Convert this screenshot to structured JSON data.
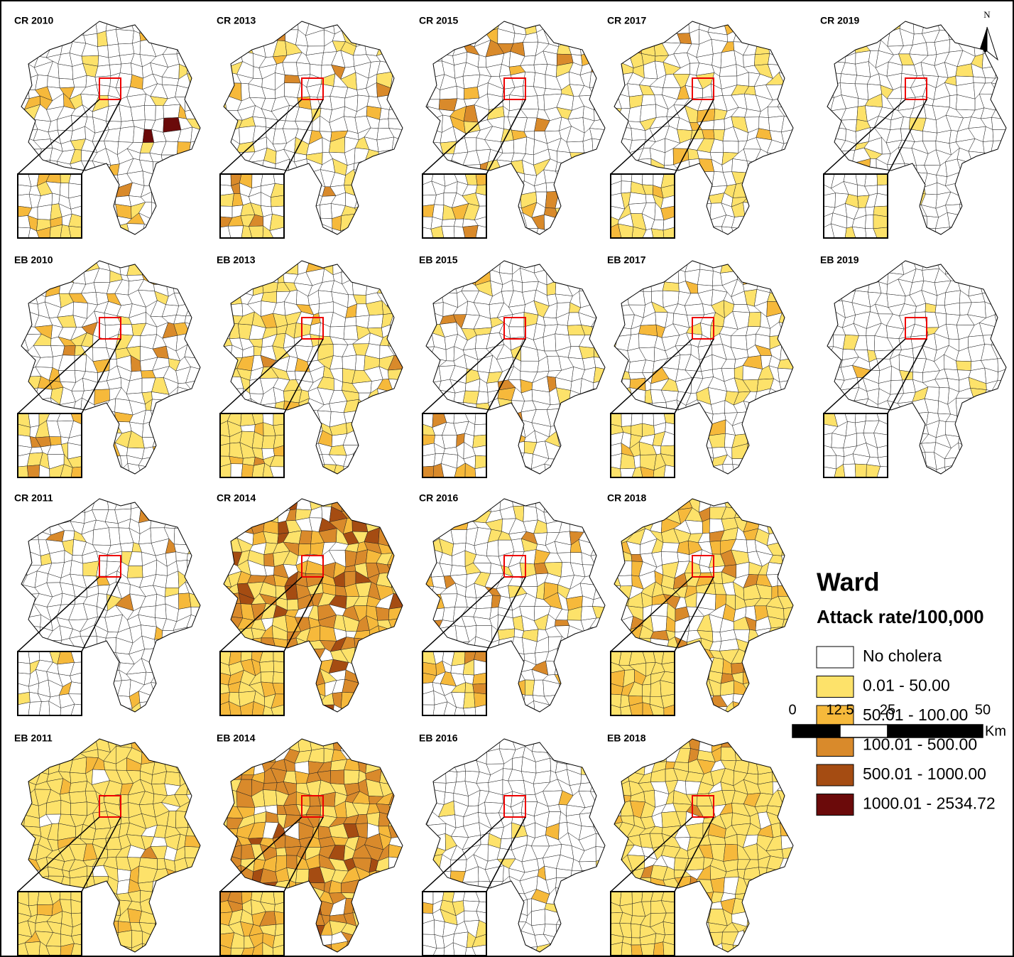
{
  "panels": [
    {
      "label": "CR 2010"
    },
    {
      "label": "CR 2013"
    },
    {
      "label": "CR 2015"
    },
    {
      "label": "CR 2017"
    },
    {
      "label": "CR 2019"
    },
    {
      "label": "EB 2010"
    },
    {
      "label": "EB 2013"
    },
    {
      "label": "EB 2015"
    },
    {
      "label": "EB 2017"
    },
    {
      "label": "EB 2019"
    },
    {
      "label": "CR 2011"
    },
    {
      "label": "CR 2014"
    },
    {
      "label": "CR 2016"
    },
    {
      "label": "CR 2018"
    },
    {
      "label": "EB 2011"
    },
    {
      "label": "EB 2014"
    },
    {
      "label": "EB 2016"
    },
    {
      "label": "EB 2018"
    }
  ],
  "north": "N",
  "legend": {
    "title": "Ward",
    "subtitle": "Attack rate/100,000",
    "classes": [
      {
        "label": "No cholera",
        "color": "#ffffff"
      },
      {
        "label": "0.01 - 50.00",
        "color": "#fde26a"
      },
      {
        "label": "50.01 - 100.00",
        "color": "#f6b93b"
      },
      {
        "label": "100.01 - 500.00",
        "color": "#d98a2b"
      },
      {
        "label": "500.01 - 1000.00",
        "color": "#a54c12"
      },
      {
        "label": "1000.01 - 2534.72",
        "color": "#6b0a0a"
      }
    ]
  },
  "scale_bar": {
    "ticks": [
      0,
      12.5,
      25,
      50
    ],
    "unit": "Km"
  }
}
